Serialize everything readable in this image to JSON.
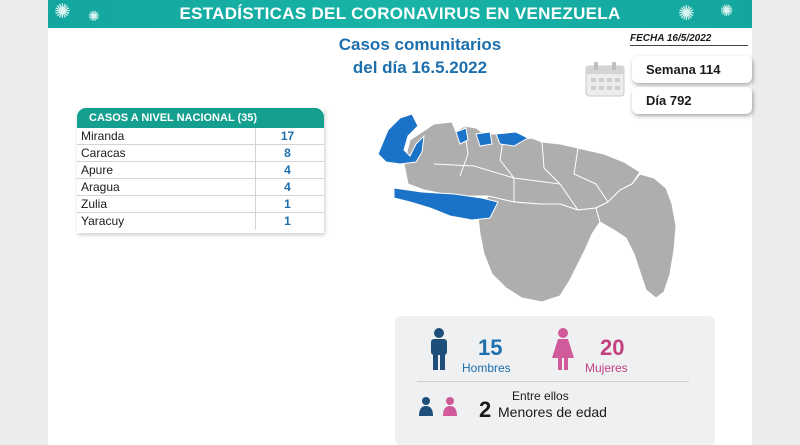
{
  "banner": {
    "title": "ESTADÍSTICAS DEL CORONAVIRUS EN VENEZUELA"
  },
  "subtitle": {
    "line1": "Casos comunitarios",
    "line2": "del día 16.5.2022"
  },
  "fecha": "FECHA 16/5/2022",
  "semana": "Semana 114",
  "dia": "Día 792",
  "table": {
    "header": "CASOS A NIVEL NACIONAL  (35)",
    "rows": [
      {
        "name": "Miranda",
        "value": "17"
      },
      {
        "name": "Caracas",
        "value": "8"
      },
      {
        "name": "Apure",
        "value": "4"
      },
      {
        "name": "Aragua",
        "value": "4"
      },
      {
        "name": "Zulia",
        "value": "1"
      },
      {
        "name": "Yaracuy",
        "value": "1"
      }
    ]
  },
  "stats": {
    "men_count": "15",
    "men_label": "Hombres",
    "women_count": "20",
    "women_label": "Mujeres",
    "among_label": "Entre ellos",
    "minors_count": "2",
    "minors_label": "Menores de edad"
  },
  "colors": {
    "teal": "#159f8e",
    "blue": "#1d6fae",
    "pink": "#c2407e",
    "map_gray": "#aeaeae",
    "map_highlight": "#1a73c9",
    "man_icon": "#1d4f7a",
    "woman_icon": "#d05a9a"
  },
  "icons": {
    "calendar": "calendar-icon",
    "man": "man-icon",
    "woman": "woman-icon",
    "children": "children-icon",
    "virus": "virus-icon"
  }
}
